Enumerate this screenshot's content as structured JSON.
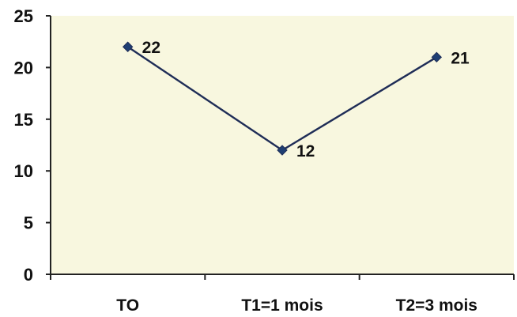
{
  "chart_data": {
    "type": "line",
    "categories": [
      "TO",
      "T1=1 mois",
      "T2=3 mois"
    ],
    "series": [
      {
        "values": [
          22,
          12,
          21
        ]
      }
    ],
    "ylim": [
      0,
      25
    ],
    "yticks": [
      0,
      5,
      10,
      15,
      20,
      25
    ],
    "data_labels": [
      "22",
      "12",
      "21"
    ],
    "grid": false,
    "legend": "none"
  },
  "colors": {
    "plot_background": "#f8f7df",
    "line": "#1f2d57",
    "marker": "#1f3f73",
    "axis": "#222222",
    "text": "#111111"
  }
}
